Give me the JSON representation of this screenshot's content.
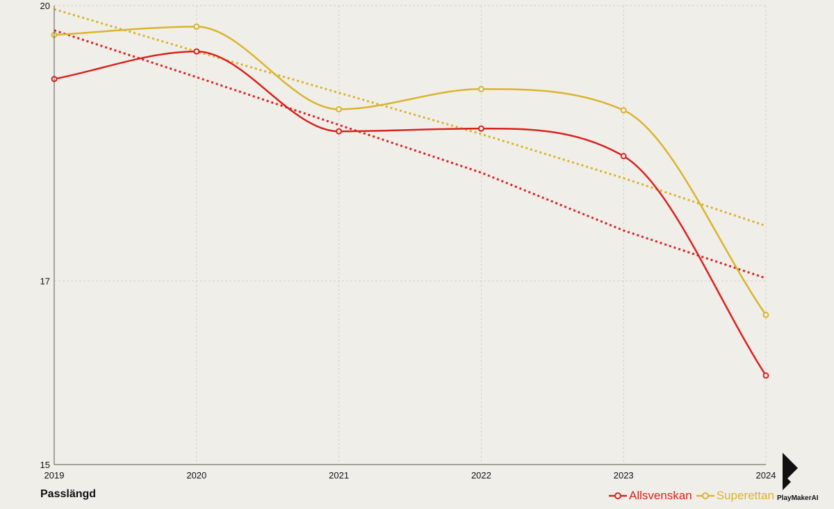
{
  "chart_data": {
    "type": "line",
    "title": "",
    "xlabel": "",
    "ylabel": "Passlängd",
    "categories": [
      "2019",
      "2020",
      "2021",
      "2022",
      "2023",
      "2024"
    ],
    "ylim": [
      15,
      20
    ],
    "yticks": [
      15,
      17,
      20
    ],
    "grid": true,
    "legend_position": "bottom-right",
    "series": [
      {
        "name": "Allsvenskan",
        "color": "#d9221f",
        "values": [
          19.2,
          19.5,
          18.63,
          18.66,
          18.36,
          15.97
        ],
        "trend": [
          19.73,
          19.22,
          18.7,
          18.18,
          17.55,
          17.03
        ]
      },
      {
        "name": "Superettan",
        "color": "#d9b42c",
        "values": [
          19.68,
          19.77,
          18.87,
          19.09,
          18.86,
          16.63
        ],
        "trend": [
          19.96,
          19.5,
          19.05,
          18.6,
          18.12,
          17.6
        ]
      }
    ]
  },
  "brand": {
    "name": "PlayMakerAI",
    "logo_icon": "playmaker-logo-icon"
  }
}
